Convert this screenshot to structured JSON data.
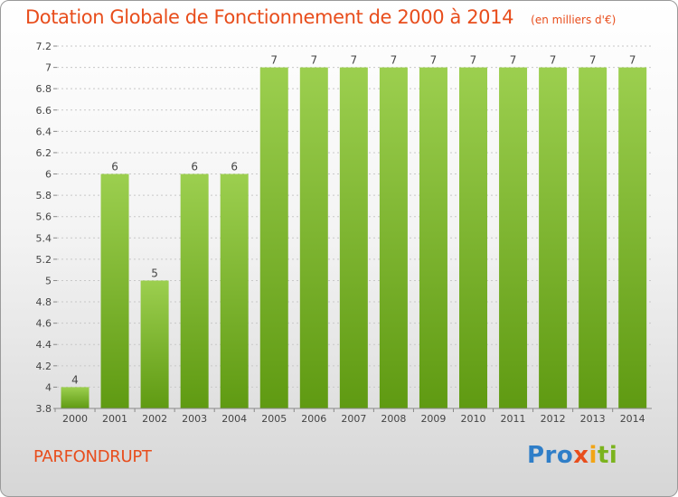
{
  "chart_data": {
    "type": "bar",
    "title": "Dotation Globale de Fonctionnement de 2000 à 2014",
    "subtitle": "(en milliers d'€)",
    "categories": [
      "2000",
      "2001",
      "2002",
      "2003",
      "2004",
      "2005",
      "2006",
      "2007",
      "2008",
      "2009",
      "2010",
      "2011",
      "2012",
      "2013",
      "2014"
    ],
    "values": [
      4.0,
      6.0,
      5.0,
      6.0,
      6.0,
      7.0,
      7.0,
      7.0,
      7.0,
      7.0,
      7.0,
      7.0,
      7.0,
      7.0,
      7.0
    ],
    "data_labels": [
      "4",
      "6",
      "5",
      "6",
      "6",
      "7",
      "7",
      "7",
      "7",
      "7",
      "7",
      "7",
      "7",
      "7",
      "7"
    ],
    "ylim": [
      3.8,
      7.2
    ],
    "yticks": [
      3.8,
      4.0,
      4.2,
      4.4,
      4.6,
      4.8,
      5.0,
      5.2,
      5.4,
      5.6,
      5.8,
      6.0,
      6.2,
      6.4,
      6.6,
      6.8,
      7.0,
      7.2
    ],
    "ytick_labels": [
      "3.8",
      "4",
      "4.2",
      "4.4",
      "4.6",
      "4.8",
      "5",
      "5.2",
      "5.4",
      "5.6",
      "5.8",
      "6",
      "6.2",
      "6.4",
      "6.6",
      "6.8",
      "7",
      "7.2"
    ],
    "grid": true,
    "xlabel": "",
    "ylabel": "",
    "colors": {
      "bar_light": "#9ccf4f",
      "bar_dark": "#5f9a12",
      "accent": "#e84d1c"
    }
  },
  "footer": {
    "commune": "PARFONDRUPT",
    "logo_parts": [
      "Pro",
      "x",
      "i",
      "ti"
    ]
  }
}
